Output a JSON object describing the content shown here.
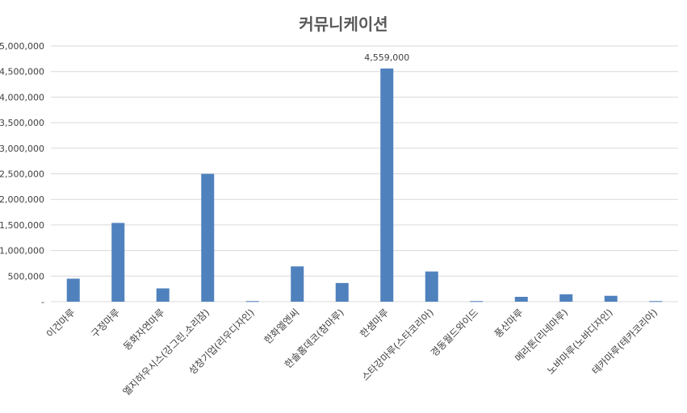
{
  "chart_data": {
    "type": "bar",
    "title": "커뮤니케이션",
    "xlabel": "",
    "ylabel": "",
    "categories": [
      "이건마루",
      "구정마루",
      "동화자연마루",
      "엘지하우시스(강그린,소리잠)",
      "성창기업(리우디자인)",
      "한화엘엔씨",
      "한솔홈데코(참마루)",
      "한샘마루",
      "스타강마루(스타코리아)",
      "경동월드와이드",
      "풍산마루",
      "메라톤(리네마루)",
      "노바마루(노바디자인)",
      "테카마루(테카코리아)"
    ],
    "values": [
      450000,
      1540000,
      260000,
      2500000,
      12000,
      690000,
      365000,
      4559000,
      590000,
      12000,
      95000,
      145000,
      115000,
      12000
    ],
    "ylim": [
      0,
      5000000
    ],
    "yticks": [
      0,
      500000,
      1000000,
      1500000,
      2000000,
      2500000,
      3000000,
      3500000,
      4000000,
      4500000,
      5000000
    ],
    "ytick_labels": [
      "-",
      "500,000",
      "1,000,000",
      "1,500,000",
      "2,000,000",
      "2,500,000",
      "3,000,000",
      "3,500,000",
      "4,000,000",
      "4,500,000",
      "5,000,000"
    ],
    "data_labels": [
      {
        "index": 7,
        "text": "4,559,000"
      }
    ],
    "grid": true,
    "legend": "none",
    "bar_color": "#4f81bd",
    "grid_color": "#d9d9d9"
  }
}
